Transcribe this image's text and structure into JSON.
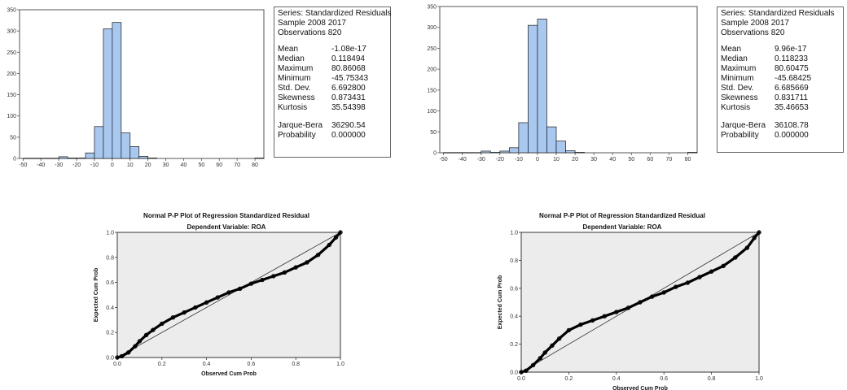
{
  "chart_data": [
    {
      "type": "bar",
      "kind": "histogram",
      "bin_width": 5,
      "x_ticks": [
        -50,
        -40,
        -30,
        -20,
        -10,
        0,
        10,
        20,
        30,
        40,
        50,
        60,
        70,
        80
      ],
      "y_ticks": [
        0,
        50,
        100,
        150,
        200,
        250,
        300,
        350
      ],
      "xlim": [
        -52,
        85
      ],
      "ylim": [
        0,
        350
      ],
      "bar_color": "#a8c8ef",
      "bins": [
        {
          "x0": -50,
          "v": 0.5
        },
        {
          "x0": -45,
          "v": 0.5
        },
        {
          "x0": -40,
          "v": 0.5
        },
        {
          "x0": -35,
          "v": 0.5
        },
        {
          "x0": -30,
          "v": 4
        },
        {
          "x0": -25,
          "v": 1
        },
        {
          "x0": -20,
          "v": 1
        },
        {
          "x0": -15,
          "v": 13
        },
        {
          "x0": -10,
          "v": 75
        },
        {
          "x0": -5,
          "v": 305
        },
        {
          "x0": 0,
          "v": 320
        },
        {
          "x0": 5,
          "v": 60
        },
        {
          "x0": 10,
          "v": 28
        },
        {
          "x0": 15,
          "v": 5
        },
        {
          "x0": 20,
          "v": 1
        },
        {
          "x0": 80,
          "v": 1
        }
      ],
      "stats": {
        "series": "Series: Standardized Residuals",
        "sample": "Sample 2008 2017",
        "observations": "Observations 820",
        "rows": [
          {
            "k": "Mean",
            "v": "-1.08e-17"
          },
          {
            "k": "Median",
            "v": "0.118494"
          },
          {
            "k": "Maximum",
            "v": "80.86068"
          },
          {
            "k": "Minimum",
            "v": "-45.75343"
          },
          {
            "k": "Std. Dev.",
            "v": "6.692800"
          },
          {
            "k": "Skewness",
            "v": "0.873431"
          },
          {
            "k": "Kurtosis",
            "v": "35.54398"
          }
        ],
        "jb_rows": [
          {
            "k": "Jarque-Bera",
            "v": "36290.54"
          },
          {
            "k": "Probability",
            "v": "0.000000"
          }
        ]
      }
    },
    {
      "type": "bar",
      "kind": "histogram",
      "bin_width": 5,
      "x_ticks": [
        -50,
        -40,
        -30,
        -20,
        -10,
        0,
        10,
        20,
        30,
        40,
        50,
        60,
        70,
        80
      ],
      "y_ticks": [
        0,
        50,
        100,
        150,
        200,
        250,
        300,
        350
      ],
      "xlim": [
        -52,
        85
      ],
      "ylim": [
        0,
        350
      ],
      "bar_color": "#a8c8ef",
      "bins": [
        {
          "x0": -50,
          "v": 0.5
        },
        {
          "x0": -45,
          "v": 0.5
        },
        {
          "x0": -40,
          "v": 0.5
        },
        {
          "x0": -35,
          "v": 0.5
        },
        {
          "x0": -30,
          "v": 4
        },
        {
          "x0": -25,
          "v": 1
        },
        {
          "x0": -20,
          "v": 4
        },
        {
          "x0": -15,
          "v": 12
        },
        {
          "x0": -10,
          "v": 72
        },
        {
          "x0": -5,
          "v": 305
        },
        {
          "x0": 0,
          "v": 320
        },
        {
          "x0": 5,
          "v": 62
        },
        {
          "x0": 10,
          "v": 28
        },
        {
          "x0": 15,
          "v": 5
        },
        {
          "x0": 20,
          "v": 1
        },
        {
          "x0": 80,
          "v": 1
        }
      ],
      "stats": {
        "series": "Series: Standardized Residuals",
        "sample": "Sample 2008 2017",
        "observations": "Observations 820",
        "rows": [
          {
            "k": "Mean",
            "v": "9.96e-17"
          },
          {
            "k": "Median",
            "v": "0.118233"
          },
          {
            "k": "Maximum",
            "v": "80.60475"
          },
          {
            "k": "Minimum",
            "v": "-45.68425"
          },
          {
            "k": "Std. Dev.",
            "v": "6.685669"
          },
          {
            "k": "Skewness",
            "v": "0.831711"
          },
          {
            "k": "Kurtosis",
            "v": "35.46653"
          }
        ],
        "jb_rows": [
          {
            "k": "Jarque-Bera",
            "v": "36108.78"
          },
          {
            "k": "Probability",
            "v": "0.000000"
          }
        ]
      }
    },
    {
      "type": "scatter",
      "kind": "pp-plot",
      "title": "Normal P-P Plot of Regression Standardized Residual",
      "subtitle": "Dependent Variable: ROA",
      "xlabel": "Observed Cum Prob",
      "ylabel": "Expected Cum Prob",
      "xlim": [
        0,
        1
      ],
      "ylim": [
        0,
        1
      ],
      "ticks": [
        "0.0",
        "0.2",
        "0.4",
        "0.6",
        "0.8",
        "1.0"
      ],
      "plot_bg": "#ececec",
      "points": [
        [
          0.0,
          0.0
        ],
        [
          0.02,
          0.01
        ],
        [
          0.05,
          0.04
        ],
        [
          0.08,
          0.09
        ],
        [
          0.1,
          0.13
        ],
        [
          0.13,
          0.18
        ],
        [
          0.16,
          0.22
        ],
        [
          0.2,
          0.27
        ],
        [
          0.25,
          0.32
        ],
        [
          0.3,
          0.36
        ],
        [
          0.35,
          0.4
        ],
        [
          0.4,
          0.44
        ],
        [
          0.45,
          0.48
        ],
        [
          0.5,
          0.52
        ],
        [
          0.55,
          0.55
        ],
        [
          0.6,
          0.59
        ],
        [
          0.65,
          0.62
        ],
        [
          0.7,
          0.65
        ],
        [
          0.75,
          0.68
        ],
        [
          0.8,
          0.72
        ],
        [
          0.85,
          0.76
        ],
        [
          0.9,
          0.82
        ],
        [
          0.95,
          0.9
        ],
        [
          0.98,
          0.96
        ],
        [
          1.0,
          1.0
        ]
      ]
    },
    {
      "type": "scatter",
      "kind": "pp-plot",
      "title": "Normal P-P Plot of Regression Standardized Residual",
      "subtitle": "Dependent Variable: ROA",
      "xlabel": "Observed Cum Prob",
      "ylabel": "Expected Cum Prob",
      "xlim": [
        0,
        1
      ],
      "ylim": [
        0,
        1
      ],
      "ticks": [
        "0.0",
        "0.2",
        "0.4",
        "0.6",
        "0.8",
        "1.0"
      ],
      "plot_bg": "#ececec",
      "points": [
        [
          0.0,
          0.0
        ],
        [
          0.02,
          0.01
        ],
        [
          0.05,
          0.05
        ],
        [
          0.08,
          0.1
        ],
        [
          0.1,
          0.14
        ],
        [
          0.13,
          0.19
        ],
        [
          0.16,
          0.24
        ],
        [
          0.2,
          0.3
        ],
        [
          0.25,
          0.34
        ],
        [
          0.3,
          0.37
        ],
        [
          0.35,
          0.4
        ],
        [
          0.4,
          0.43
        ],
        [
          0.45,
          0.46
        ],
        [
          0.5,
          0.5
        ],
        [
          0.55,
          0.54
        ],
        [
          0.6,
          0.57
        ],
        [
          0.65,
          0.61
        ],
        [
          0.7,
          0.64
        ],
        [
          0.75,
          0.68
        ],
        [
          0.8,
          0.72
        ],
        [
          0.85,
          0.76
        ],
        [
          0.9,
          0.82
        ],
        [
          0.95,
          0.89
        ],
        [
          0.98,
          0.96
        ],
        [
          1.0,
          1.0
        ]
      ]
    }
  ]
}
